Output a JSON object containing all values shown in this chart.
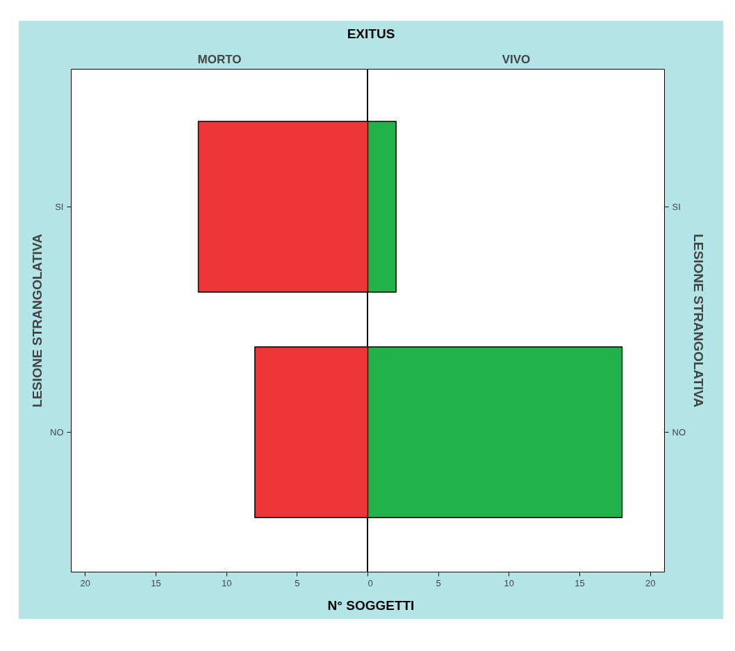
{
  "chart_data": [
    {
      "type": "bar",
      "orientation": "horizontal",
      "title": "MORTO",
      "annotations": [
        "EXITUS"
      ],
      "xlabel": "N° SOGGETTI",
      "ylabel": "LESIONE STRANGOLATIVA",
      "categories": [
        "SI",
        "NO"
      ],
      "values": [
        12,
        8
      ],
      "color": "#ee3638",
      "xlim": [
        21,
        0
      ],
      "xticks": [
        20,
        15,
        10,
        5
      ],
      "grid": false
    },
    {
      "type": "bar",
      "orientation": "horizontal",
      "title": "VIVO",
      "ylabel": "LESIONE STRANGOLATIVA",
      "categories": [
        "SI",
        "NO"
      ],
      "values": [
        2,
        18
      ],
      "color": "#23b24a",
      "xlim": [
        0,
        21
      ],
      "xticks": [
        0,
        5,
        10,
        15,
        20
      ],
      "grid": false
    }
  ]
}
